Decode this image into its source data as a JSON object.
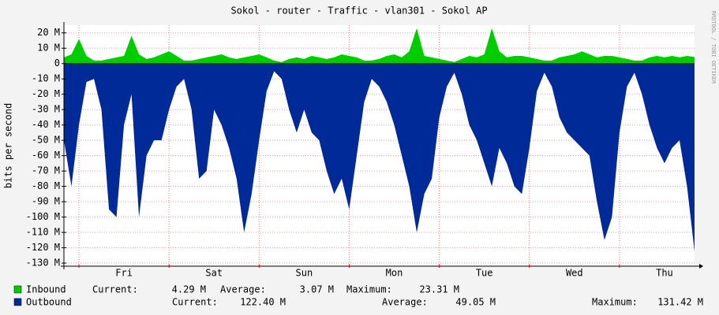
{
  "chart_data": {
    "type": "area",
    "title": "Sokol - router - Traffic - vlan301 - Sokol AP",
    "ylabel": "bits per second",
    "watermark": "RRDTOOL / TOBI OETIKER",
    "x": [
      0,
      2,
      4,
      6,
      8,
      10,
      12,
      14,
      16,
      18,
      20,
      22,
      24,
      26,
      28,
      30,
      32,
      34,
      36,
      38,
      40,
      42,
      44,
      46,
      48,
      50,
      52,
      54,
      56,
      58,
      60,
      62,
      64,
      66,
      68,
      70,
      72,
      74,
      76,
      78,
      80,
      82,
      84,
      86,
      88,
      90,
      92,
      94,
      96,
      98,
      100,
      102,
      104,
      106,
      108,
      110,
      112,
      114,
      116,
      118,
      120,
      122,
      124,
      126,
      128,
      130,
      132,
      134,
      136,
      138,
      140,
      142,
      144,
      146,
      148,
      150,
      152,
      154,
      156,
      158,
      160,
      162,
      164,
      166,
      168
    ],
    "xlim": [
      0,
      168
    ],
    "xticks": [
      {
        "value": 16,
        "label": "Fri"
      },
      {
        "value": 40,
        "label": "Sat"
      },
      {
        "value": 64,
        "label": "Sun"
      },
      {
        "value": 88,
        "label": "Mon"
      },
      {
        "value": 112,
        "label": "Tue"
      },
      {
        "value": 136,
        "label": "Wed"
      },
      {
        "value": 160,
        "label": "Thu"
      }
    ],
    "xgrid": [
      4,
      28,
      52,
      76,
      100,
      124,
      148
    ],
    "ylim": [
      -132,
      25
    ],
    "yticks": [
      {
        "value": 20,
        "label": "20 M"
      },
      {
        "value": 10,
        "label": "10 M"
      },
      0,
      {
        "value": -10,
        "label": "-10 M"
      },
      {
        "value": -20,
        "label": "-20 M"
      },
      {
        "value": -30,
        "label": "-30 M"
      },
      {
        "value": -40,
        "label": "-40 M"
      },
      {
        "value": -50,
        "label": "-50 M"
      },
      {
        "value": -60,
        "label": "-60 M"
      },
      {
        "value": -70,
        "label": "-70 M"
      },
      {
        "value": -80,
        "label": "-80 M"
      },
      {
        "value": -90,
        "label": "-90 M"
      },
      {
        "value": -100,
        "label": "-100 M"
      },
      {
        "value": -110,
        "label": "-110 M"
      },
      {
        "value": -120,
        "label": "-120 M"
      },
      {
        "value": -130,
        "label": "-130 M"
      }
    ],
    "grid": true,
    "series": [
      {
        "name": "Inbound",
        "color": "#00cc00",
        "values": [
          4,
          6,
          16,
          5,
          2,
          2,
          3,
          4,
          5,
          18,
          6,
          3,
          4,
          6,
          8,
          5,
          2,
          2,
          3,
          4,
          5,
          6,
          4,
          3,
          4,
          5,
          6,
          4,
          2,
          1,
          3,
          4,
          3,
          5,
          4,
          3,
          4,
          6,
          5,
          4,
          2,
          2,
          3,
          5,
          6,
          4,
          8,
          23,
          5,
          4,
          3,
          2,
          1,
          3,
          5,
          4,
          6,
          23,
          8,
          4,
          5,
          5,
          4,
          3,
          2,
          2,
          4,
          5,
          6,
          8,
          6,
          4,
          5,
          5,
          4,
          3,
          2,
          2,
          4,
          5,
          4,
          5,
          4,
          5,
          4.29
        ],
        "stats": [
          {
            "label": "Current:",
            "value": "4.29 M"
          },
          {
            "label": "Average:",
            "value": "3.07 M"
          },
          {
            "label": "Maximum:",
            "value": "23.31 M"
          }
        ]
      },
      {
        "name": "Outbound",
        "color": "#002a97",
        "values": [
          -50,
          -80,
          -40,
          -12,
          -10,
          -30,
          -95,
          -100,
          -40,
          -20,
          -100,
          -60,
          -50,
          -50,
          -30,
          -15,
          -10,
          -30,
          -75,
          -70,
          -30,
          -40,
          -55,
          -75,
          -110,
          -85,
          -50,
          -18,
          -5,
          -10,
          -30,
          -45,
          -30,
          -45,
          -50,
          -70,
          -85,
          -75,
          -95,
          -60,
          -25,
          -10,
          -15,
          -25,
          -40,
          -60,
          -80,
          -110,
          -85,
          -75,
          -35,
          -15,
          -6,
          -20,
          -40,
          -50,
          -65,
          -80,
          -55,
          -65,
          -80,
          -85,
          -55,
          -18,
          -6,
          -15,
          -35,
          -45,
          -50,
          -55,
          -60,
          -90,
          -115,
          -100,
          -45,
          -15,
          -6,
          -20,
          -40,
          -55,
          -65,
          -55,
          -50,
          -80,
          -122.4
        ],
        "stats": [
          {
            "label": "Current:",
            "value": "122.40 M"
          },
          {
            "label": "Average:",
            "value": "49.05 M"
          },
          {
            "label": "Maximum:",
            "value": "131.42 M"
          }
        ]
      }
    ]
  }
}
